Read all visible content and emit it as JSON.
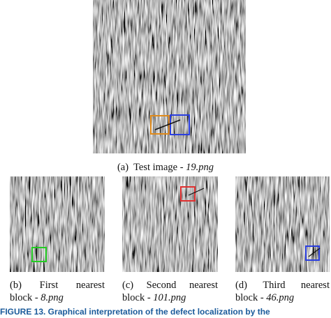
{
  "figure": {
    "main": {
      "label": "(a)",
      "text": "Test image - ",
      "file": "19.png"
    },
    "panels": [
      {
        "words": [
          "(b)",
          "First",
          "nearest"
        ],
        "text": "block - ",
        "file": "8.png"
      },
      {
        "words": [
          "(c)",
          "Second",
          "nearest"
        ],
        "text": "block - ",
        "file": "101.png"
      },
      {
        "words": [
          "(d)",
          "Third",
          "nearest"
        ],
        "text": "block - ",
        "file": "46.png"
      }
    ],
    "caption": "FIGURE 13.   Graphical interpretation of the defect localization by the"
  }
}
